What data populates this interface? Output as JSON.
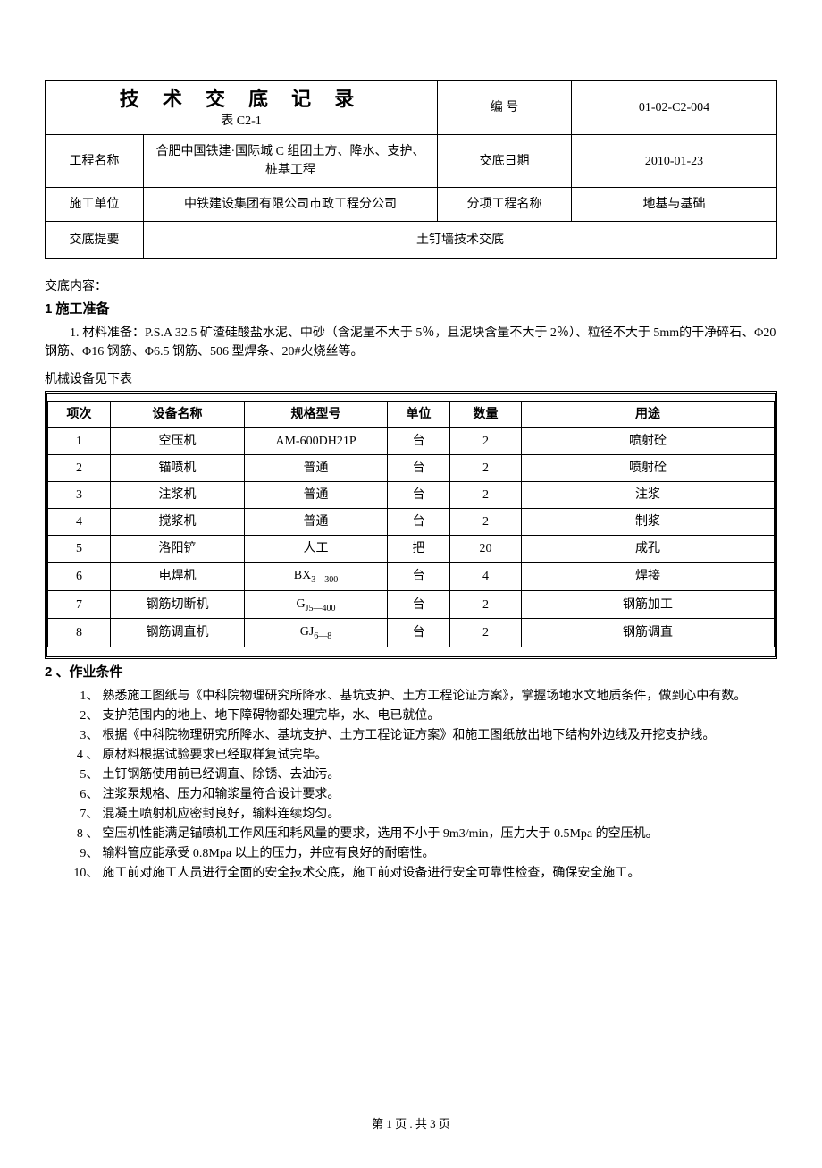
{
  "header": {
    "title": "技 术 交 底 记 录",
    "subtitle": "表 C2-1",
    "labels": {
      "doc_no": "编  号",
      "project_name": "工程名称",
      "disclose_date": "交底日期",
      "construction_unit": "施工单位",
      "sub_project": "分项工程名称",
      "summary": "交底提要"
    },
    "values": {
      "doc_no": "01-02-C2-004",
      "project_name": "合肥中国铁建·国际城 C 组团土方、降水、支护、桩基工程",
      "disclose_date": "2010-01-23",
      "construction_unit": "中铁建设集团有限公司市政工程分公司",
      "sub_project": "地基与基础",
      "summary": "土钉墙技术交底"
    }
  },
  "body": {
    "content_label": "交底内容：",
    "section1_title": "1 施工准备",
    "section1_p1": "1.  材料准备：P.S.A 32.5 矿渣硅酸盐水泥、中砂（含泥量不大于 5％，且泥块含量不大于 2％）、粒径不大于 5mm的干净碎石、Φ20 钢筋、Φ16 钢筋、Φ6.5 钢筋、506 型焊条、20#火烧丝等。",
    "equip_intro": "机械设备见下表",
    "equip_headers": [
      "项次",
      "设备名称",
      "规格型号",
      "单位",
      "数量",
      "用途"
    ],
    "equip_rows": [
      {
        "num": "1",
        "name": "空压机",
        "model": "AM-600DH21P",
        "model_sub": "",
        "unit": "台",
        "qty": "2",
        "use": "喷射砼"
      },
      {
        "num": "2",
        "name": "锚喷机",
        "model": "普通",
        "model_sub": "",
        "unit": "台",
        "qty": "2",
        "use": "喷射砼"
      },
      {
        "num": "3",
        "name": "注浆机",
        "model": "普通",
        "model_sub": "",
        "unit": "台",
        "qty": "2",
        "use": "注浆"
      },
      {
        "num": "4",
        "name": "搅浆机",
        "model": "普通",
        "model_sub": "",
        "unit": "台",
        "qty": "2",
        "use": "制浆"
      },
      {
        "num": "5",
        "name": "洛阳铲",
        "model": "人工",
        "model_sub": "",
        "unit": "把",
        "qty": "20",
        "use": "成孔"
      },
      {
        "num": "6",
        "name": "电焊机",
        "model": "BX",
        "model_sub": "3—300",
        "unit": "台",
        "qty": "4",
        "use": "焊接"
      },
      {
        "num": "7",
        "name": "钢筋切断机",
        "model": "G",
        "model_sub": "J5—400",
        "unit": "台",
        "qty": "2",
        "use": "钢筋加工"
      },
      {
        "num": "8",
        "name": "钢筋调直机",
        "model": "GJ",
        "model_sub": "6—8",
        "unit": "台",
        "qty": "2",
        "use": "钢筋调直"
      }
    ],
    "section2_title": "2 、作业条件",
    "conditions": [
      "熟悉施工图纸与《中科院物理研究所降水、基坑支护、土方工程论证方案》，掌握场地水文地质条件，做到心中有数。",
      "支护范围内的地上、地下障碍物都处理完毕，水、电已就位。",
      "根据《中科院物理研究所降水、基坑支护、土方工程论证方案》和施工图纸放出地下结构外边线及开挖支护线。",
      "原材料根据试验要求已经取样复试完毕。",
      "土钉钢筋使用前已经调直、除锈、去油污。",
      "注浆泵规格、压力和输浆量符合设计要求。",
      "混凝土喷射机应密封良好，输料连续均匀。",
      "空压机性能满足锚喷机工作风压和耗风量的要求，选用不小于 9m3/min，压力大于 0.5Mpa 的空压机。",
      "输料管应能承受 0.8Mpa 以上的压力，并应有良好的耐磨性。",
      "施工前对施工人员进行全面的安全技术交底，施工前对设备进行安全可靠性检查，确保安全施工。"
    ],
    "condition_idx": [
      "1、",
      "2、",
      "3、",
      "4 、",
      "5、",
      "6、",
      "7、",
      "8 、",
      "9、",
      "10、"
    ]
  },
  "footer": {
    "page": "第 1 页 . 共 3 页"
  }
}
